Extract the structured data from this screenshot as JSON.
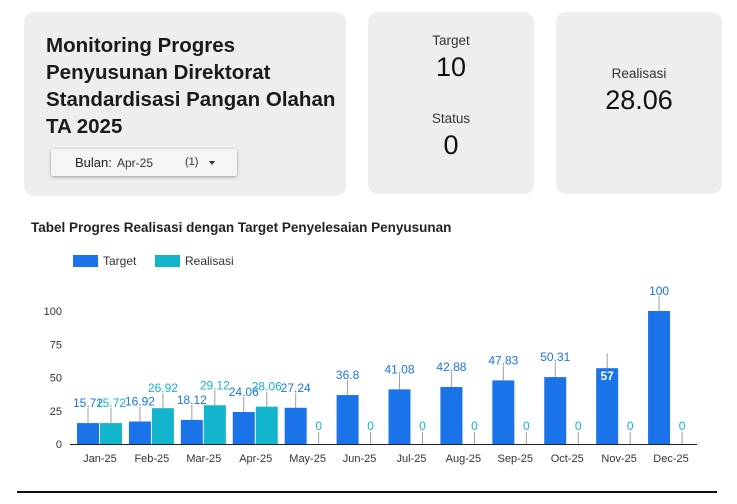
{
  "title": "Monitoring Progres Penyusunan Direktorat Standardisasi Pangan Olahan TA 2025",
  "filter": {
    "label": "Bulan:",
    "value": "Apr-25",
    "count": "(1)"
  },
  "kpi_target": {
    "target_label": "Target",
    "target_value": "10",
    "status_label": "Status",
    "status_value": "0"
  },
  "kpi_realisasi": {
    "label": "Realisasi",
    "value": "28.06"
  },
  "colors": {
    "target": "#1a73e8",
    "realisasi": "#12b5cb",
    "card_bg": "#eeeeee"
  },
  "chart_data": {
    "type": "bar",
    "title": "Tabel Progres Realisasi dengan Target Penyelesaian Penyusunan",
    "legend_position": "top-left",
    "categories": [
      "Jan-25",
      "Feb-25",
      "Mar-25",
      "Apr-25",
      "May-25",
      "Jun-25",
      "Jul-25",
      "Aug-25",
      "Sep-25",
      "Oct-25",
      "Nov-25",
      "Dec-25"
    ],
    "series": [
      {
        "name": "Target",
        "values": [
          15.72,
          16.92,
          18.12,
          24.06,
          27.24,
          36.8,
          41.08,
          42.88,
          47.83,
          50.31,
          57,
          100
        ]
      },
      {
        "name": "Realisasi",
        "values": [
          15.72,
          26.92,
          29.12,
          28.06,
          0,
          0,
          0,
          0,
          0,
          0,
          0,
          0
        ]
      }
    ],
    "yticks": [
      "0",
      "25",
      "50",
      "75",
      "100"
    ],
    "ylim": [
      0,
      100
    ],
    "grid": false
  }
}
